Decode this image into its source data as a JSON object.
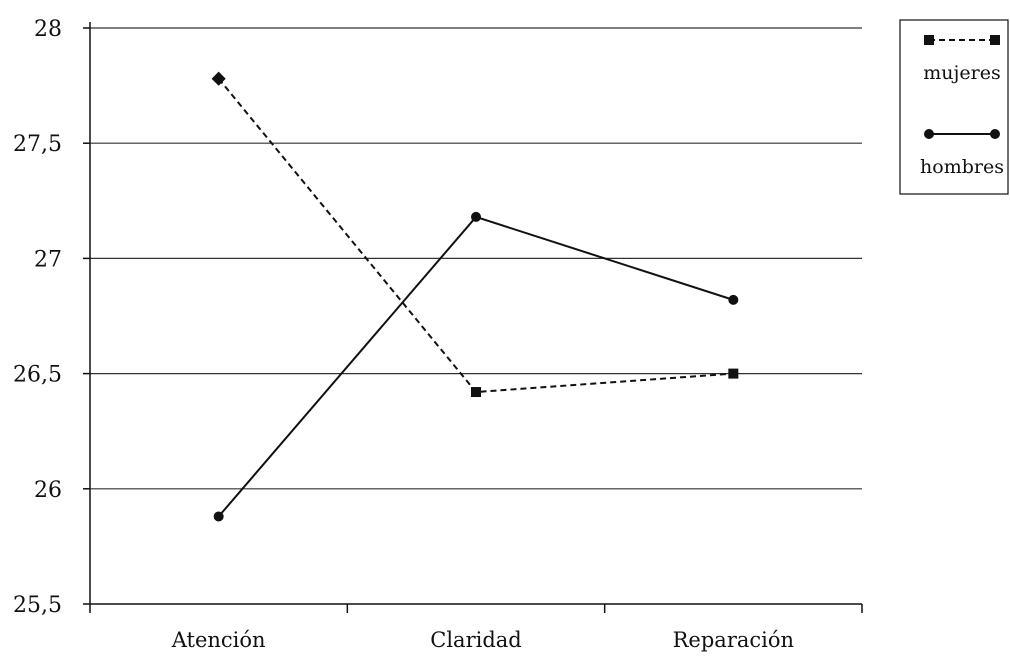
{
  "chart_data": {
    "type": "line",
    "categories": [
      "Atención",
      "Claridad",
      "Reparación"
    ],
    "series": [
      {
        "name": "mujeres",
        "values": [
          27.78,
          26.42,
          26.5
        ],
        "style": "dashed",
        "marker": "square"
      },
      {
        "name": "hombres",
        "values": [
          25.88,
          27.18,
          26.82
        ],
        "style": "solid",
        "marker": "circle"
      }
    ],
    "yticks": [
      "25,5",
      "26",
      "26,5",
      "27",
      "27,5",
      "28"
    ],
    "ylim": [
      25.5,
      28
    ],
    "grid": true,
    "legend_position": "top-right",
    "colors": {
      "line": "#111111",
      "grid": "#333333"
    }
  }
}
